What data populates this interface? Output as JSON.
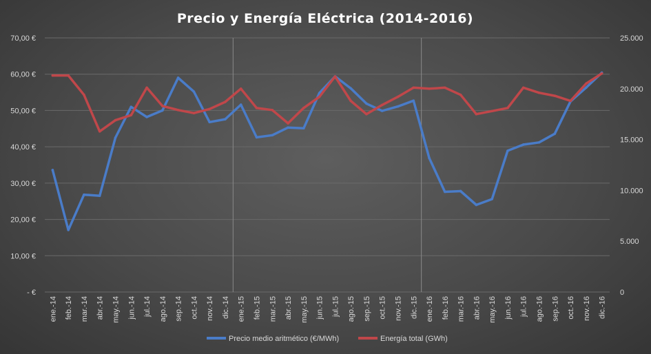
{
  "chart_data": {
    "type": "line",
    "title": "Precio y Energía Eléctrica (2014-2016)",
    "categories": [
      "ene.-14",
      "feb.-14",
      "mar.-14",
      "abr.-14",
      "may.-14",
      "jun.-14",
      "jul.-14",
      "ago.-14",
      "sep.-14",
      "oct.-14",
      "nov.-14",
      "dic.-14",
      "ene.-15",
      "feb.-15",
      "mar.-15",
      "abr.-15",
      "may.-15",
      "jun.-15",
      "jul.-15",
      "ago.-15",
      "sep.-15",
      "oct.-15",
      "nov.-15",
      "dic.-15",
      "ene.-16",
      "feb.-16",
      "mar.-16",
      "abr.-16",
      "may.-16",
      "jun.-16",
      "jul.-16",
      "ago.-16",
      "sep.-16",
      "oct.-16",
      "nov.-16",
      "dic.-16"
    ],
    "series": [
      {
        "name": "Precio medio aritmético (€/MWh)",
        "axis": "left",
        "color": "#4a7cc8",
        "values": [
          33.6,
          17.1,
          26.8,
          26.5,
          42.5,
          51.0,
          48.2,
          50.0,
          59.0,
          55.2,
          46.8,
          47.6,
          51.6,
          42.6,
          43.2,
          45.3,
          45.1,
          54.8,
          59.4,
          56.1,
          51.9,
          49.9,
          51.1,
          52.7,
          36.9,
          27.6,
          27.8,
          24.0,
          25.6,
          38.9,
          40.6,
          41.2,
          43.6,
          52.5,
          56.3,
          60.4
        ]
      },
      {
        "name": "Energía total (GWh)",
        "axis": "right",
        "color": "#c0474a",
        "values": [
          21300,
          21300,
          19400,
          15800,
          16900,
          17400,
          20100,
          18300,
          17900,
          17600,
          18000,
          18700,
          20000,
          18100,
          17900,
          16600,
          18100,
          19200,
          21200,
          18800,
          17500,
          18400,
          19200,
          20100,
          20000,
          20100,
          19400,
          17500,
          17800,
          18100,
          20100,
          19600,
          19300,
          18800,
          20500,
          21500
        ]
      }
    ],
    "y_left": {
      "min": 0,
      "max": 70,
      "step": 10,
      "tick_labels": [
        "-  €",
        "10,00 €",
        "20,00 €",
        "30,00 €",
        "40,00 €",
        "50,00 €",
        "60,00 €",
        "70,00 €"
      ]
    },
    "y_right": {
      "min": 0,
      "max": 25000,
      "step": 5000,
      "tick_labels": [
        "0",
        "5.000",
        "10.000",
        "15.000",
        "20.000",
        "25.000"
      ]
    },
    "grid": true,
    "year_separators_after": [
      "dic.-14",
      "dic.-15"
    ],
    "legend_position": "bottom",
    "background": "#4b4b4b",
    "gridline_color": "#6a6a6a",
    "text_color": "#d9d9d9"
  }
}
